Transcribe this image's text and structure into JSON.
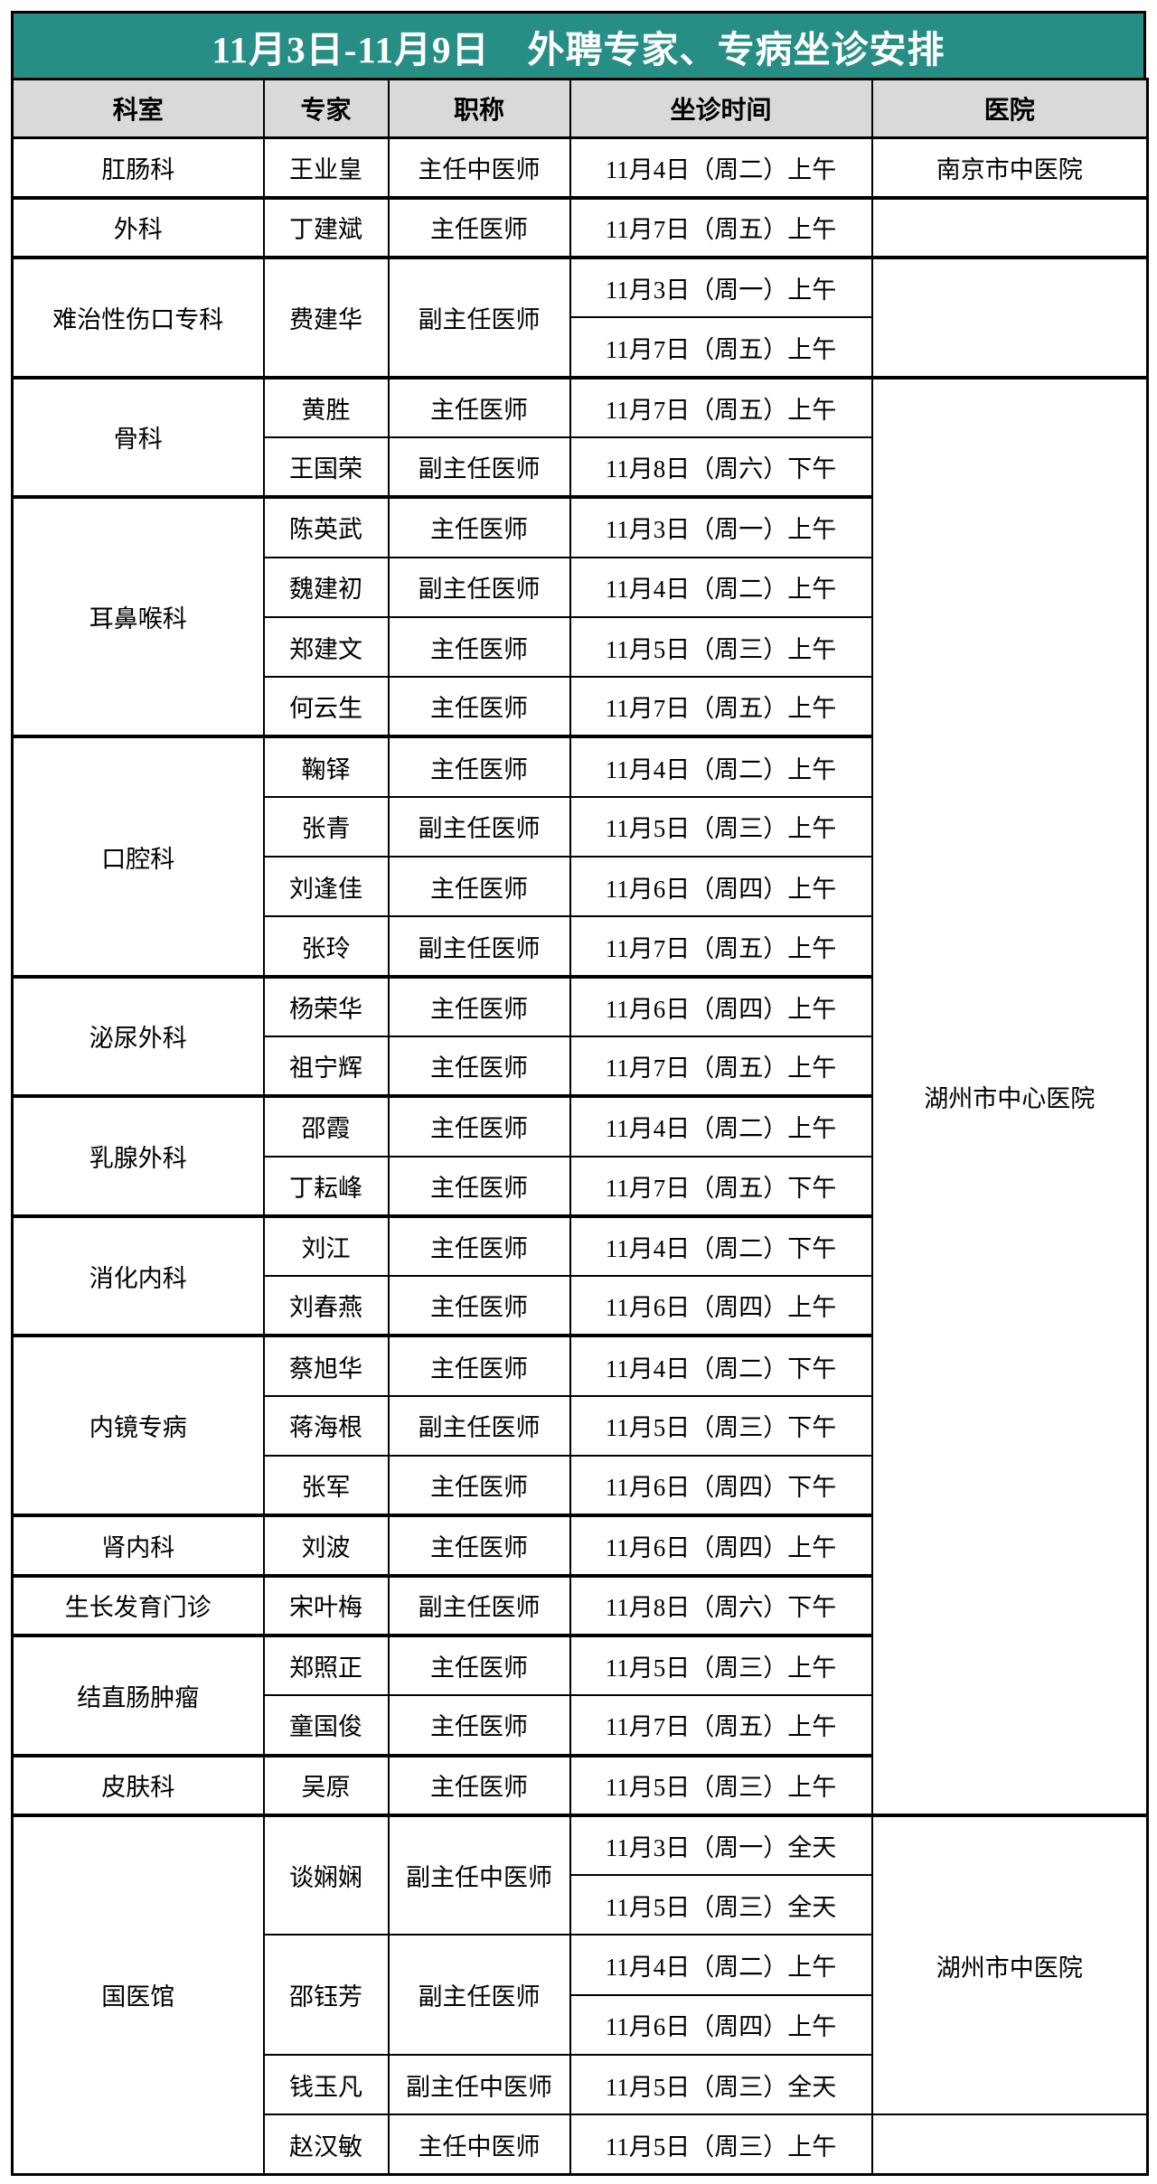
{
  "title": "11月3日-11月9日　外聘专家、专病坐诊安排",
  "columns": [
    "科室",
    "专家",
    "职称",
    "坐诊时间",
    "医院"
  ],
  "colors": {
    "accent_teal": "#278e86",
    "header_gray": "#d9d9d9",
    "title_text": "#ffffff",
    "border": "#000000"
  },
  "hospital_spans": [
    {
      "label": "南京市中医院",
      "rows": 1
    },
    {
      "label": "",
      "rows": 1
    },
    {
      "label": "",
      "rows": 2
    },
    {
      "label": "湖州市中心医院",
      "rows": 24
    },
    {
      "label": "湖州市中医院",
      "rows": 5
    },
    {
      "label": "",
      "rows": 1
    }
  ],
  "departments": [
    {
      "name": "肛肠科",
      "experts": [
        {
          "name": "王业皇",
          "title": "主任中医师",
          "times": [
            "11月4日（周二）上午"
          ]
        }
      ]
    },
    {
      "name": "外科",
      "experts": [
        {
          "name": "丁建斌",
          "title": "主任医师",
          "times": [
            "11月7日（周五）上午"
          ]
        }
      ]
    },
    {
      "name": "难治性伤口专科",
      "experts": [
        {
          "name": "费建华",
          "title": "副主任医师",
          "times": [
            "11月3日（周一）上午",
            "11月7日（周五）上午"
          ]
        }
      ]
    },
    {
      "name": "骨科",
      "experts": [
        {
          "name": "黄胜",
          "title": "主任医师",
          "times": [
            "11月7日（周五）上午"
          ]
        },
        {
          "name": "王国荣",
          "title": "副主任医师",
          "times": [
            "11月8日（周六）下午"
          ]
        }
      ]
    },
    {
      "name": "耳鼻喉科",
      "experts": [
        {
          "name": "陈英武",
          "title": "主任医师",
          "times": [
            "11月3日（周一）上午"
          ]
        },
        {
          "name": "魏建初",
          "title": "副主任医师",
          "times": [
            "11月4日（周二）上午"
          ]
        },
        {
          "name": "郑建文",
          "title": "主任医师",
          "times": [
            "11月5日（周三）上午"
          ]
        },
        {
          "name": "何云生",
          "title": "主任医师",
          "times": [
            "11月7日（周五）上午"
          ]
        }
      ]
    },
    {
      "name": "口腔科",
      "experts": [
        {
          "name": "鞠铎",
          "title": "主任医师",
          "times": [
            "11月4日（周二）上午"
          ]
        },
        {
          "name": "张青",
          "title": "副主任医师",
          "times": [
            "11月5日（周三）上午"
          ]
        },
        {
          "name": "刘逢佳",
          "title": "主任医师",
          "times": [
            "11月6日（周四）上午"
          ]
        },
        {
          "name": "张玲",
          "title": "副主任医师",
          "times": [
            "11月7日（周五）上午"
          ]
        }
      ]
    },
    {
      "name": "泌尿外科",
      "experts": [
        {
          "name": "杨荣华",
          "title": "主任医师",
          "times": [
            "11月6日（周四）上午"
          ]
        },
        {
          "name": "祖宁辉",
          "title": "主任医师",
          "times": [
            "11月7日（周五）上午"
          ]
        }
      ]
    },
    {
      "name": "乳腺外科",
      "experts": [
        {
          "name": "邵霞",
          "title": "主任医师",
          "times": [
            "11月4日（周二）上午"
          ]
        },
        {
          "name": "丁耘峰",
          "title": "主任医师",
          "times": [
            "11月7日（周五）下午"
          ]
        }
      ]
    },
    {
      "name": "消化内科",
      "experts": [
        {
          "name": "刘江",
          "title": "主任医师",
          "times": [
            "11月4日（周二）下午"
          ]
        },
        {
          "name": "刘春燕",
          "title": "主任医师",
          "times": [
            "11月6日（周四）上午"
          ]
        }
      ]
    },
    {
      "name": "内镜专病",
      "experts": [
        {
          "name": "蔡旭华",
          "title": "主任医师",
          "times": [
            "11月4日（周二）下午"
          ]
        },
        {
          "name": "蒋海根",
          "title": "副主任医师",
          "times": [
            "11月5日（周三）下午"
          ]
        },
        {
          "name": "张军",
          "title": "主任医师",
          "times": [
            "11月6日（周四）下午"
          ]
        }
      ]
    },
    {
      "name": "肾内科",
      "experts": [
        {
          "name": "刘波",
          "title": "主任医师",
          "times": [
            "11月6日（周四）上午"
          ]
        }
      ]
    },
    {
      "name": "生长发育门诊",
      "experts": [
        {
          "name": "宋叶梅",
          "title": "副主任医师",
          "times": [
            "11月8日（周六）下午"
          ]
        }
      ]
    },
    {
      "name": "结直肠肿瘤",
      "experts": [
        {
          "name": "郑照正",
          "title": "主任医师",
          "times": [
            "11月5日（周三）上午"
          ]
        },
        {
          "name": "童国俊",
          "title": "主任医师",
          "times": [
            "11月7日（周五）上午"
          ]
        }
      ]
    },
    {
      "name": "皮肤科",
      "experts": [
        {
          "name": "吴原",
          "title": "主任医师",
          "times": [
            "11月5日（周三）上午"
          ]
        }
      ]
    },
    {
      "name": "国医馆",
      "experts": [
        {
          "name": "谈娴娴",
          "title": "副主任中医师",
          "times": [
            "11月3日（周一）全天",
            "11月5日（周三）全天"
          ]
        },
        {
          "name": "邵钰芳",
          "title": "副主任医师",
          "times": [
            "11月4日（周二）上午",
            "11月6日（周四）上午"
          ]
        },
        {
          "name": "钱玉凡",
          "title": "副主任中医师",
          "times": [
            "11月5日（周三）全天"
          ]
        },
        {
          "name": "赵汉敏",
          "title": "主任中医师",
          "times": [
            "11月5日（周三）上午"
          ]
        }
      ]
    }
  ]
}
